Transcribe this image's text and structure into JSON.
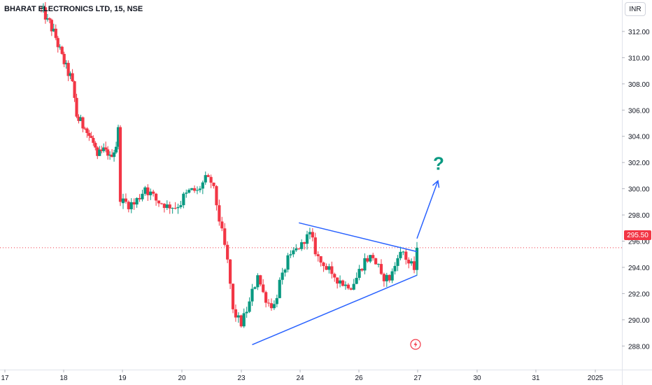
{
  "header": {
    "symbol_title": "BHARAT ELECTRONICS LTD, 15, NSE"
  },
  "currency_badge": "INR",
  "last_price_label": "295.50",
  "annotation": {
    "question_mark": "?"
  },
  "colors": {
    "up": "#089981",
    "down": "#f23645",
    "trendline": "#2962ff",
    "annotation": "#089981",
    "price_line": "#f23645"
  },
  "chart_data": {
    "type": "candlestick",
    "title": "BHARAT ELECTRONICS LTD, 15, NSE",
    "currency": "INR",
    "last_price": 295.5,
    "ylim": [
      286.2,
      314.4
    ],
    "yticks": [
      288,
      290,
      292,
      294,
      296,
      298,
      300,
      302,
      304,
      306,
      308,
      310,
      312
    ],
    "ytick_labels": [
      "288.00",
      "290.00",
      "292.00",
      "294.00",
      "296.00",
      "298.00",
      "300.00",
      "302.00",
      "304.00",
      "306.00",
      "308.00",
      "310.00",
      "312.00"
    ],
    "xtick_labels": [
      "17",
      "18",
      "19",
      "20",
      "23",
      "24",
      "26",
      "27",
      "30",
      "31",
      "2025"
    ],
    "price_path": [
      [
        0,
        313.8
      ],
      [
        4,
        313.0
      ],
      [
        8,
        311.5
      ],
      [
        12,
        309.5
      ],
      [
        16,
        308.2
      ],
      [
        18,
        305.5
      ],
      [
        22,
        304.6
      ],
      [
        26,
        303.5
      ],
      [
        28,
        302.5
      ],
      [
        32,
        303.0
      ],
      [
        34,
        302.6
      ],
      [
        37,
        303.2
      ],
      [
        38,
        304.7
      ],
      [
        39,
        299.0
      ],
      [
        44,
        298.8
      ],
      [
        48,
        300.1
      ],
      [
        52,
        299.1
      ],
      [
        56,
        298.8
      ],
      [
        60,
        298.6
      ],
      [
        63,
        299.7
      ],
      [
        67,
        299.9
      ],
      [
        71,
        300.9
      ],
      [
        73,
        300.2
      ],
      [
        75,
        297.5
      ],
      [
        78,
        294.6
      ],
      [
        80,
        290.8
      ],
      [
        83,
        289.5
      ],
      [
        86,
        291.4
      ],
      [
        89,
        293.4
      ],
      [
        92,
        291.3
      ],
      [
        95,
        291.2
      ],
      [
        98,
        293.6
      ],
      [
        101,
        295.0
      ],
      [
        104,
        295.4
      ],
      [
        106,
        295.8
      ],
      [
        108,
        296.7
      ],
      [
        110,
        295.0
      ],
      [
        113,
        294.1
      ],
      [
        116,
        293.5
      ],
      [
        119,
        293.0
      ],
      [
        122,
        292.4
      ],
      [
        125,
        293.2
      ],
      [
        128,
        294.7
      ],
      [
        131,
        294.7
      ],
      [
        134,
        293.5
      ],
      [
        137,
        293.0
      ],
      [
        140,
        294.7
      ],
      [
        142,
        295.2
      ],
      [
        144,
        294.3
      ],
      [
        146,
        293.8
      ],
      [
        147,
        295.5
      ]
    ],
    "gaps": [
      39
    ],
    "triangle": {
      "upper": {
        "from": {
          "bar": 104,
          "price": 297.4
        },
        "to": {
          "bar": 147,
          "price": 295.2
        }
      },
      "lower": {
        "from": {
          "bar": 87,
          "price": 288.1
        },
        "to": {
          "bar": 147,
          "price": 293.4
        }
      }
    },
    "projection_arrow": {
      "from": {
        "bar": 147,
        "price": 296.2
      },
      "to": {
        "bar": 154,
        "price": 300.6
      }
    },
    "session_dividers": "none",
    "grid": false
  }
}
